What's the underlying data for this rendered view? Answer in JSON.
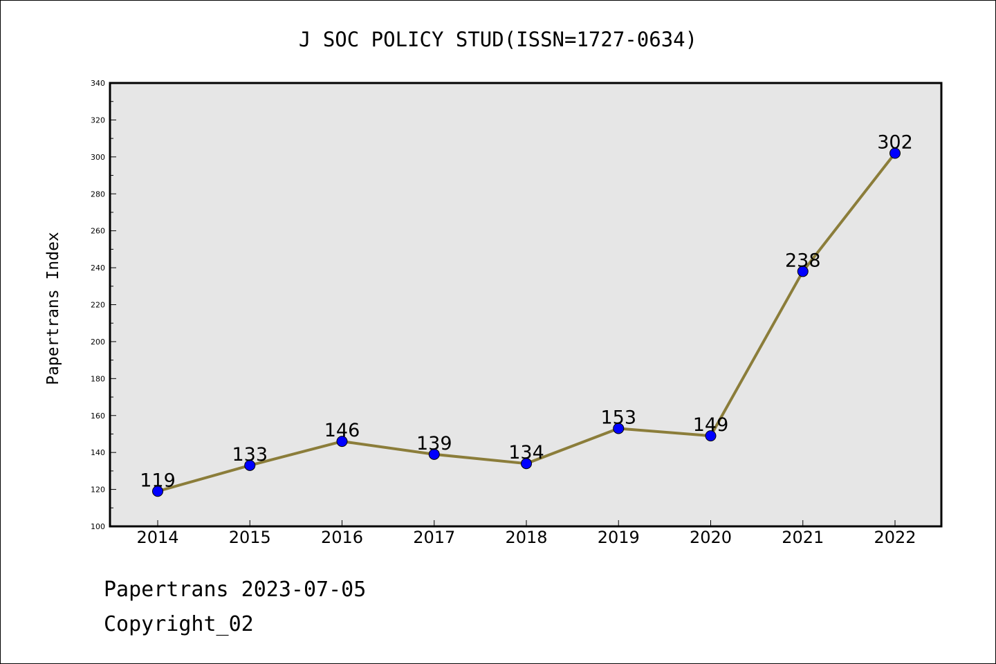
{
  "chart_data": {
    "type": "line",
    "title": "J SOC POLICY STUD(ISSN=1727-0634)",
    "ylabel": "Papertrans Index",
    "xlabel": "",
    "categories": [
      "2014",
      "2015",
      "2016",
      "2017",
      "2018",
      "2019",
      "2020",
      "2021",
      "2022"
    ],
    "series": [
      {
        "values": [
          119,
          133,
          146,
          139,
          134,
          153,
          149,
          238,
          302
        ]
      }
    ],
    "ylim": [
      100,
      340
    ],
    "yticks": [
      100,
      120,
      140,
      160,
      180,
      200,
      220,
      240,
      260,
      280,
      300,
      320,
      340
    ],
    "data_labels": true,
    "grid": false,
    "colors": {
      "line": "#8b7d3a",
      "marker": "#0000ff",
      "plot_background": "#e6e6e6"
    }
  },
  "footer": {
    "line1": "Papertrans 2023-07-05",
    "line2": "Copyright_02"
  }
}
